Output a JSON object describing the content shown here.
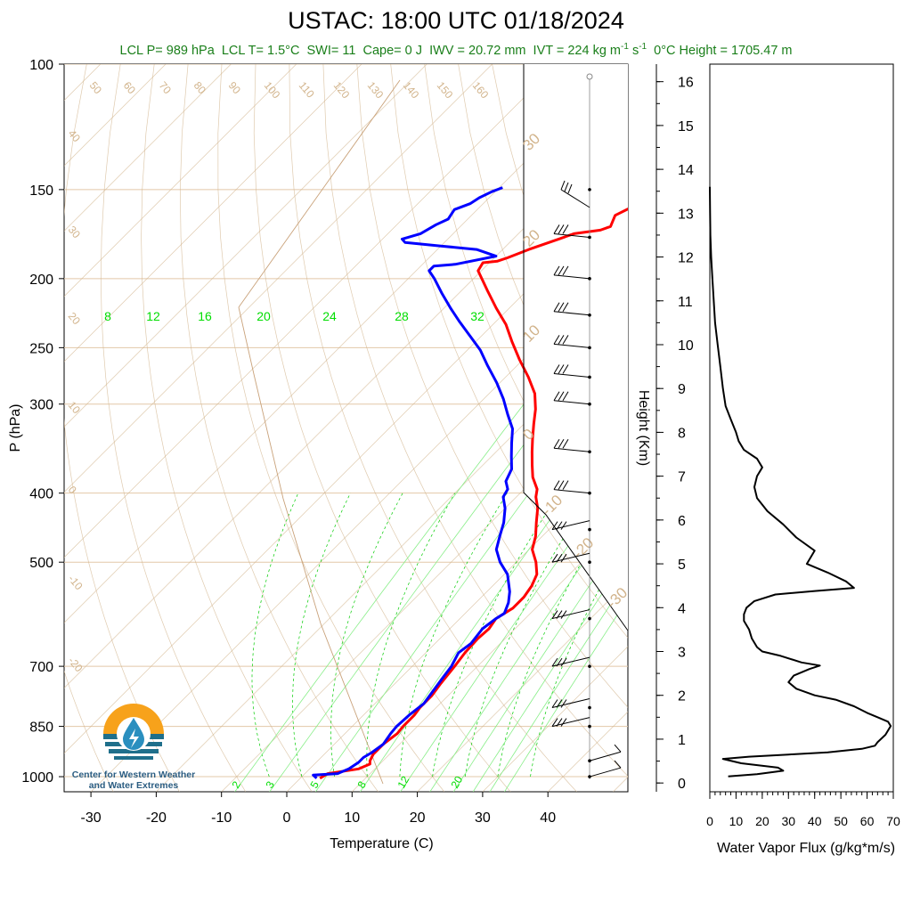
{
  "title": "USTAC: 18:00 UTC 01/18/2024",
  "stats": {
    "lcl_p": "LCL P= 989 hPa",
    "lcl_t": "LCL T= 1.5°C",
    "swi": "SWI= 11",
    "cape": "Cape= 0 J",
    "iwv": "IWV = 20.72 mm",
    "ivt_prefix": "IVT = 224 kg m",
    "ivt_exp1": "-1",
    "ivt_mid": " s",
    "ivt_exp2": "-1",
    "zero_height": "0°C Height = 1705.47 m"
  },
  "logo": {
    "line1": "Center for Western Weather",
    "line2": "and Water Extremes",
    "colors": {
      "sun": "#f7a21b",
      "water": "#1f6f8b",
      "drop": "#2a8fbf"
    }
  },
  "colors": {
    "temperature": "#ff0000",
    "dewpoint": "#0000ff",
    "dry_adiabat": "#d2b48c",
    "mixing_ratio": "#00dd00",
    "moist_adiabat": "#00cc00",
    "flux": "#000000"
  },
  "chart_data": [
    {
      "type": "line",
      "name": "skew-t",
      "xlabel": "Temperature (C)",
      "ylabel": "P (hPa)",
      "x_ticks": [
        "-30",
        "-20",
        "-10",
        "0",
        "10",
        "20",
        "30",
        "40"
      ],
      "y_ticks": [
        "100",
        "150",
        "200",
        "250",
        "300",
        "400",
        "500",
        "700",
        "850",
        "1000"
      ],
      "xlim": [
        -34,
        48
      ],
      "ylim": [
        1050,
        100
      ],
      "y_scale": "log",
      "skew": "temperature lines tilted 45°",
      "isotherm_labels": [
        "50",
        "60",
        "70",
        "80",
        "90",
        "100",
        "110",
        "120",
        "130",
        "140",
        "150",
        "160",
        "40",
        "30",
        "20",
        "10",
        "0",
        "-10",
        "-20"
      ],
      "dry_adiabat_labels": [
        "30",
        "20",
        "10",
        "0",
        "-10",
        "-20",
        "-30"
      ],
      "mixing_ratio_top_labels": [
        "8",
        "12",
        "16",
        "20",
        "24",
        "28",
        "32"
      ],
      "mixing_ratio_bottom_labels": [
        "2",
        "3",
        "5",
        "8",
        "12",
        "20"
      ],
      "series": [
        {
          "name": "temperature",
          "points": [
            [
              3.0,
              1005
            ],
            [
              3.5,
              990
            ],
            [
              7.5,
              975
            ],
            [
              8.5,
              960
            ],
            [
              8.0,
              950
            ],
            [
              7.5,
              930
            ],
            [
              7.5,
              900
            ],
            [
              8.0,
              870
            ],
            [
              7.8,
              850
            ],
            [
              7.8,
              820
            ],
            [
              7.5,
              800
            ],
            [
              7.5,
              770
            ],
            [
              7.0,
              740
            ],
            [
              6.5,
              700
            ],
            [
              6.0,
              670
            ],
            [
              5.8,
              640
            ],
            [
              6.0,
              620
            ],
            [
              5.5,
              600
            ],
            [
              6.5,
              580
            ],
            [
              6.5,
              560
            ],
            [
              6.0,
              540
            ],
            [
              5.0,
              520
            ],
            [
              3.0,
              500
            ],
            [
              0.5,
              480
            ],
            [
              -1.0,
              460
            ],
            [
              -3.0,
              440
            ],
            [
              -5.0,
              420
            ],
            [
              -7.0,
              405
            ],
            [
              -8.0,
              395
            ],
            [
              -10.5,
              380
            ],
            [
              -12.5,
              365
            ],
            [
              -14.5,
              350
            ],
            [
              -16.5,
              335
            ],
            [
              -18.5,
              320
            ],
            [
              -20.5,
              305
            ],
            [
              -23.0,
              290
            ],
            [
              -26.5,
              275
            ],
            [
              -30.5,
              260
            ],
            [
              -34.5,
              245
            ],
            [
              -38.0,
              232
            ],
            [
              -42.0,
              220
            ],
            [
              -46.0,
              208
            ],
            [
              -50.5,
              195
            ],
            [
              -51.0,
              190
            ],
            [
              -49.0,
              189
            ],
            [
              -48.0,
              187
            ],
            [
              -46.0,
              182
            ],
            [
              -43.0,
              176
            ],
            [
              -41.5,
              173
            ],
            [
              -38.0,
              171
            ],
            [
              -37.0,
              169
            ],
            [
              -38.0,
              163
            ],
            [
              -36.5,
              158
            ],
            [
              -34.5,
              155
            ],
            [
              -33.0,
              153
            ],
            [
              -31.0,
              150
            ]
          ]
        },
        {
          "name": "dewpoint",
          "points": [
            [
              2.5,
              1005
            ],
            [
              1.5,
              995
            ],
            [
              5.0,
              990
            ],
            [
              6.0,
              975
            ],
            [
              6.5,
              955
            ],
            [
              6.5,
              940
            ],
            [
              7.0,
              925
            ],
            [
              7.5,
              900
            ],
            [
              7.0,
              870
            ],
            [
              6.8,
              850
            ],
            [
              7.0,
              820
            ],
            [
              7.5,
              790
            ],
            [
              7.0,
              760
            ],
            [
              6.5,
              730
            ],
            [
              6.0,
              700
            ],
            [
              5.0,
              670
            ],
            [
              5.5,
              650
            ],
            [
              5.0,
              620
            ],
            [
              5.5,
              600
            ],
            [
              6.0,
              590
            ],
            [
              5.0,
              570
            ],
            [
              3.5,
              550
            ],
            [
              0.5,
              520
            ],
            [
              -2.5,
              500
            ],
            [
              -5.0,
              480
            ],
            [
              -6.5,
              460
            ],
            [
              -8.0,
              440
            ],
            [
              -10.0,
              420
            ],
            [
              -12.0,
              405
            ],
            [
              -12.5,
              395
            ],
            [
              -14.0,
              385
            ],
            [
              -15.0,
              370
            ],
            [
              -17.0,
              355
            ],
            [
              -19.0,
              340
            ],
            [
              -21.0,
              325
            ],
            [
              -24.0,
              310
            ],
            [
              -27.0,
              295
            ],
            [
              -30.5,
              280
            ],
            [
              -34.5,
              265
            ],
            [
              -38.0,
              252
            ],
            [
              -42.0,
              240
            ],
            [
              -45.5,
              230
            ],
            [
              -49.0,
              220
            ],
            [
              -52.5,
              210
            ],
            [
              -56.0,
              200
            ],
            [
              -58.0,
              195
            ],
            [
              -58.0,
              192
            ],
            [
              -55.0,
              191
            ],
            [
              -50.0,
              186
            ],
            [
              -54.0,
              182
            ],
            [
              -60.0,
              180
            ],
            [
              -66.0,
              178
            ],
            [
              -67.0,
              176
            ],
            [
              -65.0,
              173
            ],
            [
              -64.0,
              168
            ],
            [
              -63.0,
              165
            ],
            [
              -63.5,
              160
            ],
            [
              -62.0,
              157
            ],
            [
              -61.5,
              154
            ],
            [
              -60.5,
              151
            ],
            [
              -59.5,
              149
            ]
          ]
        }
      ]
    },
    {
      "type": "line",
      "name": "wind profile",
      "barb_pressures": [
        150,
        175,
        200,
        225,
        250,
        275,
        300,
        350,
        400,
        450,
        500,
        600,
        700,
        800,
        850,
        950,
        1000
      ]
    },
    {
      "type": "line",
      "name": "water vapor flux",
      "xlabel": "Water Vapor Flux (g/kg*m/s)",
      "ylabel": "Height (Km)",
      "x_ticks": [
        "0",
        "10",
        "20",
        "30",
        "40",
        "50",
        "60",
        "70"
      ],
      "y_ticks": [
        "0",
        "1",
        "2",
        "3",
        "4",
        "5",
        "6",
        "7",
        "8",
        "9",
        "10",
        "11",
        "12",
        "13",
        "14",
        "15",
        "16"
      ],
      "xlim": [
        0,
        70
      ],
      "ylim": [
        -0.2,
        16.4
      ],
      "points": [
        [
          7,
          0.15
        ],
        [
          18,
          0.2
        ],
        [
          28,
          0.28
        ],
        [
          26,
          0.35
        ],
        [
          12,
          0.45
        ],
        [
          5,
          0.55
        ],
        [
          15,
          0.6
        ],
        [
          30,
          0.65
        ],
        [
          45,
          0.7
        ],
        [
          58,
          0.78
        ],
        [
          63,
          0.85
        ],
        [
          64,
          0.93
        ],
        [
          67,
          1.1
        ],
        [
          69,
          1.3
        ],
        [
          68,
          1.4
        ],
        [
          64,
          1.5
        ],
        [
          60,
          1.6
        ],
        [
          55,
          1.75
        ],
        [
          48,
          1.9
        ],
        [
          40,
          2.0
        ],
        [
          33,
          2.15
        ],
        [
          30,
          2.3
        ],
        [
          32,
          2.45
        ],
        [
          38,
          2.6
        ],
        [
          42,
          2.68
        ],
        [
          35,
          2.75
        ],
        [
          27,
          2.9
        ],
        [
          20,
          3.0
        ],
        [
          18,
          3.1
        ],
        [
          16,
          3.3
        ],
        [
          15,
          3.5
        ],
        [
          13,
          3.7
        ],
        [
          13,
          3.85
        ],
        [
          14,
          4.0
        ],
        [
          17,
          4.15
        ],
        [
          25,
          4.3
        ],
        [
          40,
          4.38
        ],
        [
          55,
          4.45
        ],
        [
          52,
          4.6
        ],
        [
          45,
          4.8
        ],
        [
          37,
          5.0
        ],
        [
          40,
          5.3
        ],
        [
          33,
          5.6
        ],
        [
          28,
          5.9
        ],
        [
          22,
          6.2
        ],
        [
          18,
          6.5
        ],
        [
          17,
          6.75
        ],
        [
          18,
          7.0
        ],
        [
          20,
          7.2
        ],
        [
          18,
          7.4
        ],
        [
          13,
          7.6
        ],
        [
          11,
          7.8
        ],
        [
          10,
          8.0
        ],
        [
          8,
          8.3
        ],
        [
          6,
          8.6
        ],
        [
          5,
          9.0
        ],
        [
          4,
          9.5
        ],
        [
          3,
          10.0
        ],
        [
          2,
          10.5
        ],
        [
          1.5,
          11.0
        ],
        [
          1,
          11.5
        ],
        [
          0.5,
          12.0
        ],
        [
          0.2,
          12.5
        ],
        [
          0.1,
          13.0
        ],
        [
          0,
          13.6
        ]
      ]
    }
  ]
}
